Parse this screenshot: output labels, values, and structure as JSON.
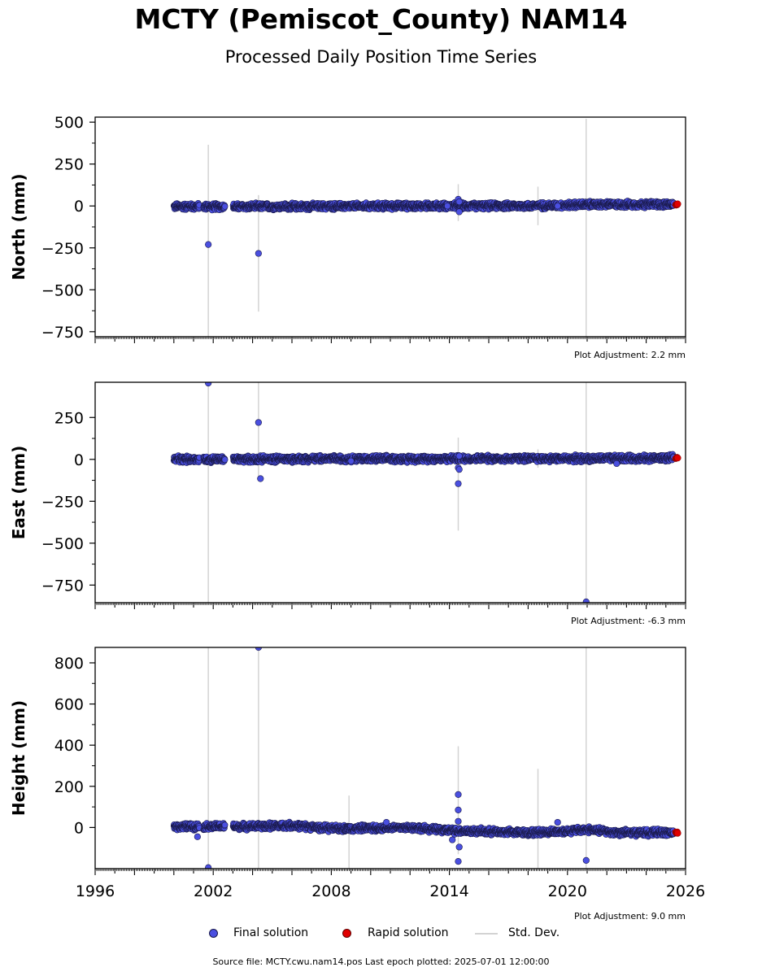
{
  "title": "MCTY (Pemiscot_County) NAM14",
  "subtitle": "Processed Daily Position Time Series",
  "colors": {
    "final": "#4a4fe0",
    "final_edge": "#1a1a4a",
    "rapid": "#e00000",
    "stddev": "#d3d3d3"
  },
  "legend": {
    "final": "Final solution",
    "rapid": "Rapid solution",
    "stddev": "Std. Dev."
  },
  "footer": "Source file: MCTY.cwu.nam14.pos  Last epoch plotted: 2025-07-01 12:00:00",
  "chart_data": [
    {
      "type": "scatter",
      "ylabel": "North (mm)",
      "adjustment": "Plot Adjustment: 2.2 mm",
      "xlim": [
        1996,
        2026
      ],
      "ylim": [
        -780,
        530
      ],
      "yticks": [
        500,
        250,
        0,
        -250,
        -500,
        -750
      ],
      "ytick_labels": [
        "500",
        "250",
        "0",
        "−250",
        "−500",
        "−750"
      ],
      "trend": [
        [
          2000.0,
          -3
        ],
        [
          2003.0,
          -4
        ],
        [
          2008.0,
          -2
        ],
        [
          2012.0,
          0
        ],
        [
          2014.5,
          0
        ],
        [
          2018.0,
          0
        ],
        [
          2021.0,
          8
        ],
        [
          2025.4,
          10
        ]
      ],
      "gaps": [
        [
          2001.3,
          2001.5
        ],
        [
          2002.6,
          2003.0
        ]
      ],
      "outliers": [
        [
          2001.75,
          -230
        ],
        [
          2004.3,
          -283
        ],
        [
          2014.45,
          40
        ],
        [
          2014.5,
          -35
        ],
        [
          2014.5,
          25
        ],
        [
          2013.9,
          0
        ],
        [
          2019.5,
          0
        ]
      ],
      "stddev_bars": [
        [
          2001.75,
          -795,
          365
        ],
        [
          2004.3,
          -630,
          65
        ],
        [
          2014.45,
          -90,
          130
        ],
        [
          2018.5,
          -115,
          115
        ],
        [
          2020.95,
          -800,
          520
        ]
      ],
      "rapid_end": [
        2025.5,
        8
      ]
    },
    {
      "type": "scatter",
      "ylabel": "East (mm)",
      "adjustment": "Plot Adjustment: -6.3 mm",
      "xlim": [
        1996,
        2026
      ],
      "ylim": [
        -855,
        460
      ],
      "yticks": [
        250,
        0,
        -250,
        -500,
        -750
      ],
      "ytick_labels": [
        "250",
        "0",
        "−250",
        "−500",
        "−750"
      ],
      "trend": [
        [
          2000.0,
          0
        ],
        [
          2003.0,
          0
        ],
        [
          2008.0,
          5
        ],
        [
          2012.0,
          3
        ],
        [
          2014.5,
          5
        ],
        [
          2018.0,
          5
        ],
        [
          2021.0,
          5
        ],
        [
          2025.4,
          8
        ]
      ],
      "gaps": [
        [
          2001.3,
          2001.5
        ],
        [
          2002.6,
          2003.0
        ]
      ],
      "outliers": [
        [
          2001.75,
          455
        ],
        [
          2004.3,
          220
        ],
        [
          2004.4,
          -115
        ],
        [
          2014.45,
          -50
        ],
        [
          2014.45,
          -145
        ],
        [
          2014.5,
          -60
        ],
        [
          2014.5,
          20
        ],
        [
          2009.0,
          -10
        ],
        [
          2022.5,
          -25
        ],
        [
          2020.95,
          -850
        ]
      ],
      "stddev_bars": [
        [
          2001.75,
          -860,
          460
        ],
        [
          2004.3,
          -100,
          460
        ],
        [
          2014.45,
          -425,
          130
        ],
        [
          2018.5,
          -50,
          60
        ],
        [
          2020.95,
          -860,
          460
        ]
      ],
      "rapid_end": [
        2025.5,
        8
      ]
    },
    {
      "type": "scatter",
      "ylabel": "Height (mm)",
      "adjustment": "Plot Adjustment: 9.0 mm",
      "xlim": [
        1996,
        2026
      ],
      "ylim": [
        -200,
        875
      ],
      "yticks": [
        800,
        600,
        400,
        200,
        0
      ],
      "ytick_labels": [
        "800",
        "600",
        "400",
        "200",
        "0"
      ],
      "xticks": [
        1996,
        2002,
        2008,
        2014,
        2020,
        2026
      ],
      "xtick_labels": [
        "1996",
        "2002",
        "2008",
        "2014",
        "2020",
        "2026"
      ],
      "trend": [
        [
          2000.0,
          5
        ],
        [
          2004.0,
          5
        ],
        [
          2006.0,
          10
        ],
        [
          2008.0,
          -5
        ],
        [
          2012.0,
          0
        ],
        [
          2014.0,
          -15
        ],
        [
          2016.0,
          -20
        ],
        [
          2018.0,
          -25
        ],
        [
          2019.5,
          -20
        ],
        [
          2021.0,
          -10
        ],
        [
          2022.5,
          -25
        ],
        [
          2025.4,
          -25
        ]
      ],
      "gaps": [
        [
          2001.3,
          2001.5
        ],
        [
          2002.6,
          2003.0
        ]
      ],
      "outliers": [
        [
          2001.75,
          -195
        ],
        [
          2001.2,
          -45
        ],
        [
          2004.3,
          875
        ],
        [
          2014.45,
          160
        ],
        [
          2014.45,
          85
        ],
        [
          2014.45,
          30
        ],
        [
          2014.5,
          -95
        ],
        [
          2014.45,
          -165
        ],
        [
          2014.15,
          -60
        ],
        [
          2019.5,
          25
        ],
        [
          2020.95,
          -160
        ],
        [
          2010.8,
          25
        ]
      ],
      "stddev_bars": [
        [
          2001.75,
          -200,
          875
        ],
        [
          2004.3,
          -200,
          875
        ],
        [
          2008.9,
          -200,
          155
        ],
        [
          2014.45,
          -130,
          395
        ],
        [
          2018.5,
          -200,
          285
        ],
        [
          2020.95,
          -200,
          875
        ]
      ],
      "rapid_end": [
        2025.5,
        -25
      ]
    }
  ]
}
